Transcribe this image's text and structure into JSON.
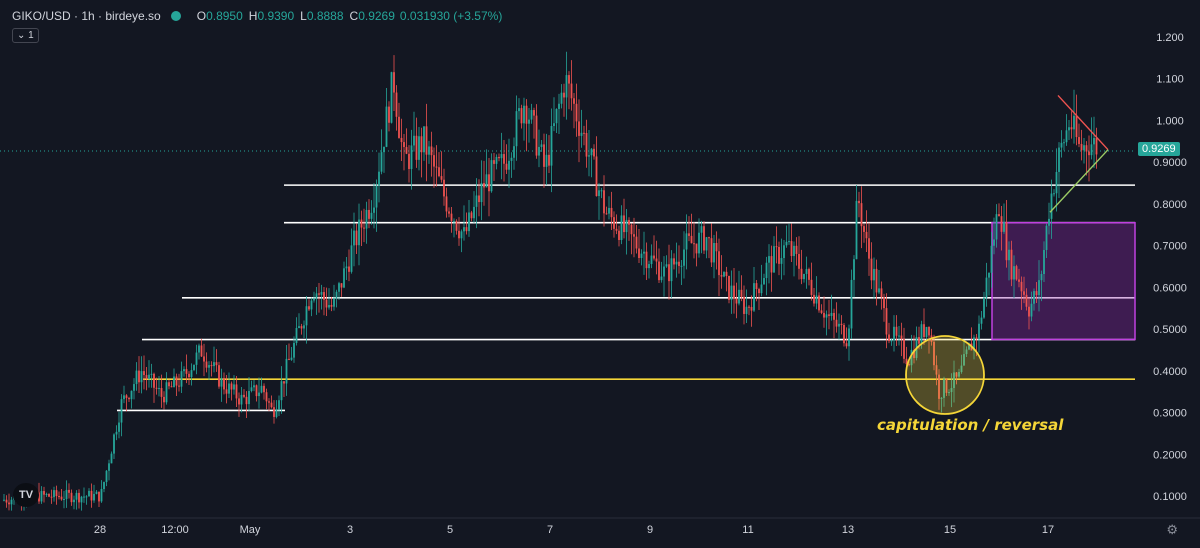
{
  "header": {
    "symbol": "GIKO/USD · 1h · birdeye.so",
    "open_label": "O",
    "open": "0.8950",
    "high_label": "H",
    "high": "0.9390",
    "low_label": "L",
    "low": "0.8888",
    "close_label": "C",
    "close": "0.9269",
    "change": "0.031930 (+3.57%)",
    "collapse_label": "⌄ 1"
  },
  "annotation": "capitulation / reversal",
  "current_price_label": "0.9269",
  "colors": {
    "background": "#131722",
    "up": "#26a69a",
    "down": "#ef5350",
    "support": "#ffffff",
    "key_level": "#f5d638",
    "zone": "#8e24aa",
    "triangle": "#ef5350"
  },
  "chart_data": {
    "type": "candlestick",
    "timeframe": "1h",
    "x_tick_labels": [
      "28",
      "12:00",
      "May",
      "3",
      "5",
      "7",
      "9",
      "11",
      "13",
      "15",
      "17"
    ],
    "y_tick_labels": [
      "1.200",
      "1.100",
      "1.000",
      "0.9000",
      "0.8000",
      "0.7000",
      "0.6000",
      "0.5000",
      "0.4000",
      "0.3000",
      "0.2000",
      "0.1000"
    ],
    "ylim": [
      0.06,
      1.28
    ],
    "last_price": 0.9269,
    "price_path": [
      [
        0,
        0.09
      ],
      [
        3,
        0.1
      ],
      [
        7,
        0.1
      ],
      [
        10,
        0.1
      ],
      [
        12,
        0.32
      ],
      [
        14,
        0.4
      ],
      [
        16,
        0.34
      ],
      [
        18,
        0.38
      ],
      [
        20,
        0.45
      ],
      [
        22,
        0.37
      ],
      [
        24,
        0.33
      ],
      [
        26,
        0.36
      ],
      [
        27,
        0.3
      ],
      [
        29,
        0.45
      ],
      [
        31,
        0.6
      ],
      [
        33,
        0.55
      ],
      [
        35,
        0.7
      ],
      [
        37,
        0.82
      ],
      [
        39,
        1.1
      ],
      [
        40,
        0.9
      ],
      [
        42,
        0.95
      ],
      [
        44,
        0.82
      ],
      [
        46,
        0.72
      ],
      [
        48,
        0.85
      ],
      [
        50,
        0.9
      ],
      [
        52,
        1.05
      ],
      [
        54,
        0.88
      ],
      [
        56,
        1.1
      ],
      [
        58,
        0.95
      ],
      [
        60,
        0.78
      ],
      [
        62,
        0.73
      ],
      [
        64,
        0.68
      ],
      [
        66,
        0.63
      ],
      [
        68,
        0.7
      ],
      [
        70,
        0.72
      ],
      [
        72,
        0.6
      ],
      [
        74,
        0.55
      ],
      [
        76,
        0.65
      ],
      [
        78,
        0.7
      ],
      [
        80,
        0.62
      ],
      [
        82,
        0.53
      ],
      [
        84,
        0.48
      ],
      [
        85,
        0.82
      ],
      [
        86,
        0.68
      ],
      [
        88,
        0.5
      ],
      [
        90,
        0.43
      ],
      [
        92,
        0.52
      ],
      [
        93,
        0.35
      ],
      [
        95,
        0.38
      ],
      [
        96,
        0.45
      ],
      [
        97,
        0.5
      ],
      [
        98,
        0.65
      ],
      [
        99,
        0.8
      ],
      [
        100,
        0.66
      ],
      [
        101,
        0.62
      ],
      [
        102,
        0.55
      ],
      [
        103,
        0.6
      ],
      [
        104,
        0.8
      ],
      [
        105,
        0.92
      ],
      [
        106,
        1.0
      ],
      [
        107,
        0.93
      ],
      [
        108,
        0.95
      ],
      [
        109,
        0.93
      ]
    ],
    "horizontal_levels": [
      {
        "price": 0.845,
        "color": "white"
      },
      {
        "price": 0.755,
        "color": "white"
      },
      {
        "price": 0.575,
        "color": "white"
      },
      {
        "price": 0.475,
        "color": "white"
      },
      {
        "price": 0.38,
        "color": "yellow"
      },
      {
        "price": 0.305,
        "color": "white"
      }
    ],
    "zone": {
      "top": 0.755,
      "bottom": 0.475
    },
    "triangle": {
      "upper": [
        1.06,
        0.93
      ],
      "lower": [
        0.78,
        0.93
      ]
    },
    "circle_price": 0.39
  }
}
